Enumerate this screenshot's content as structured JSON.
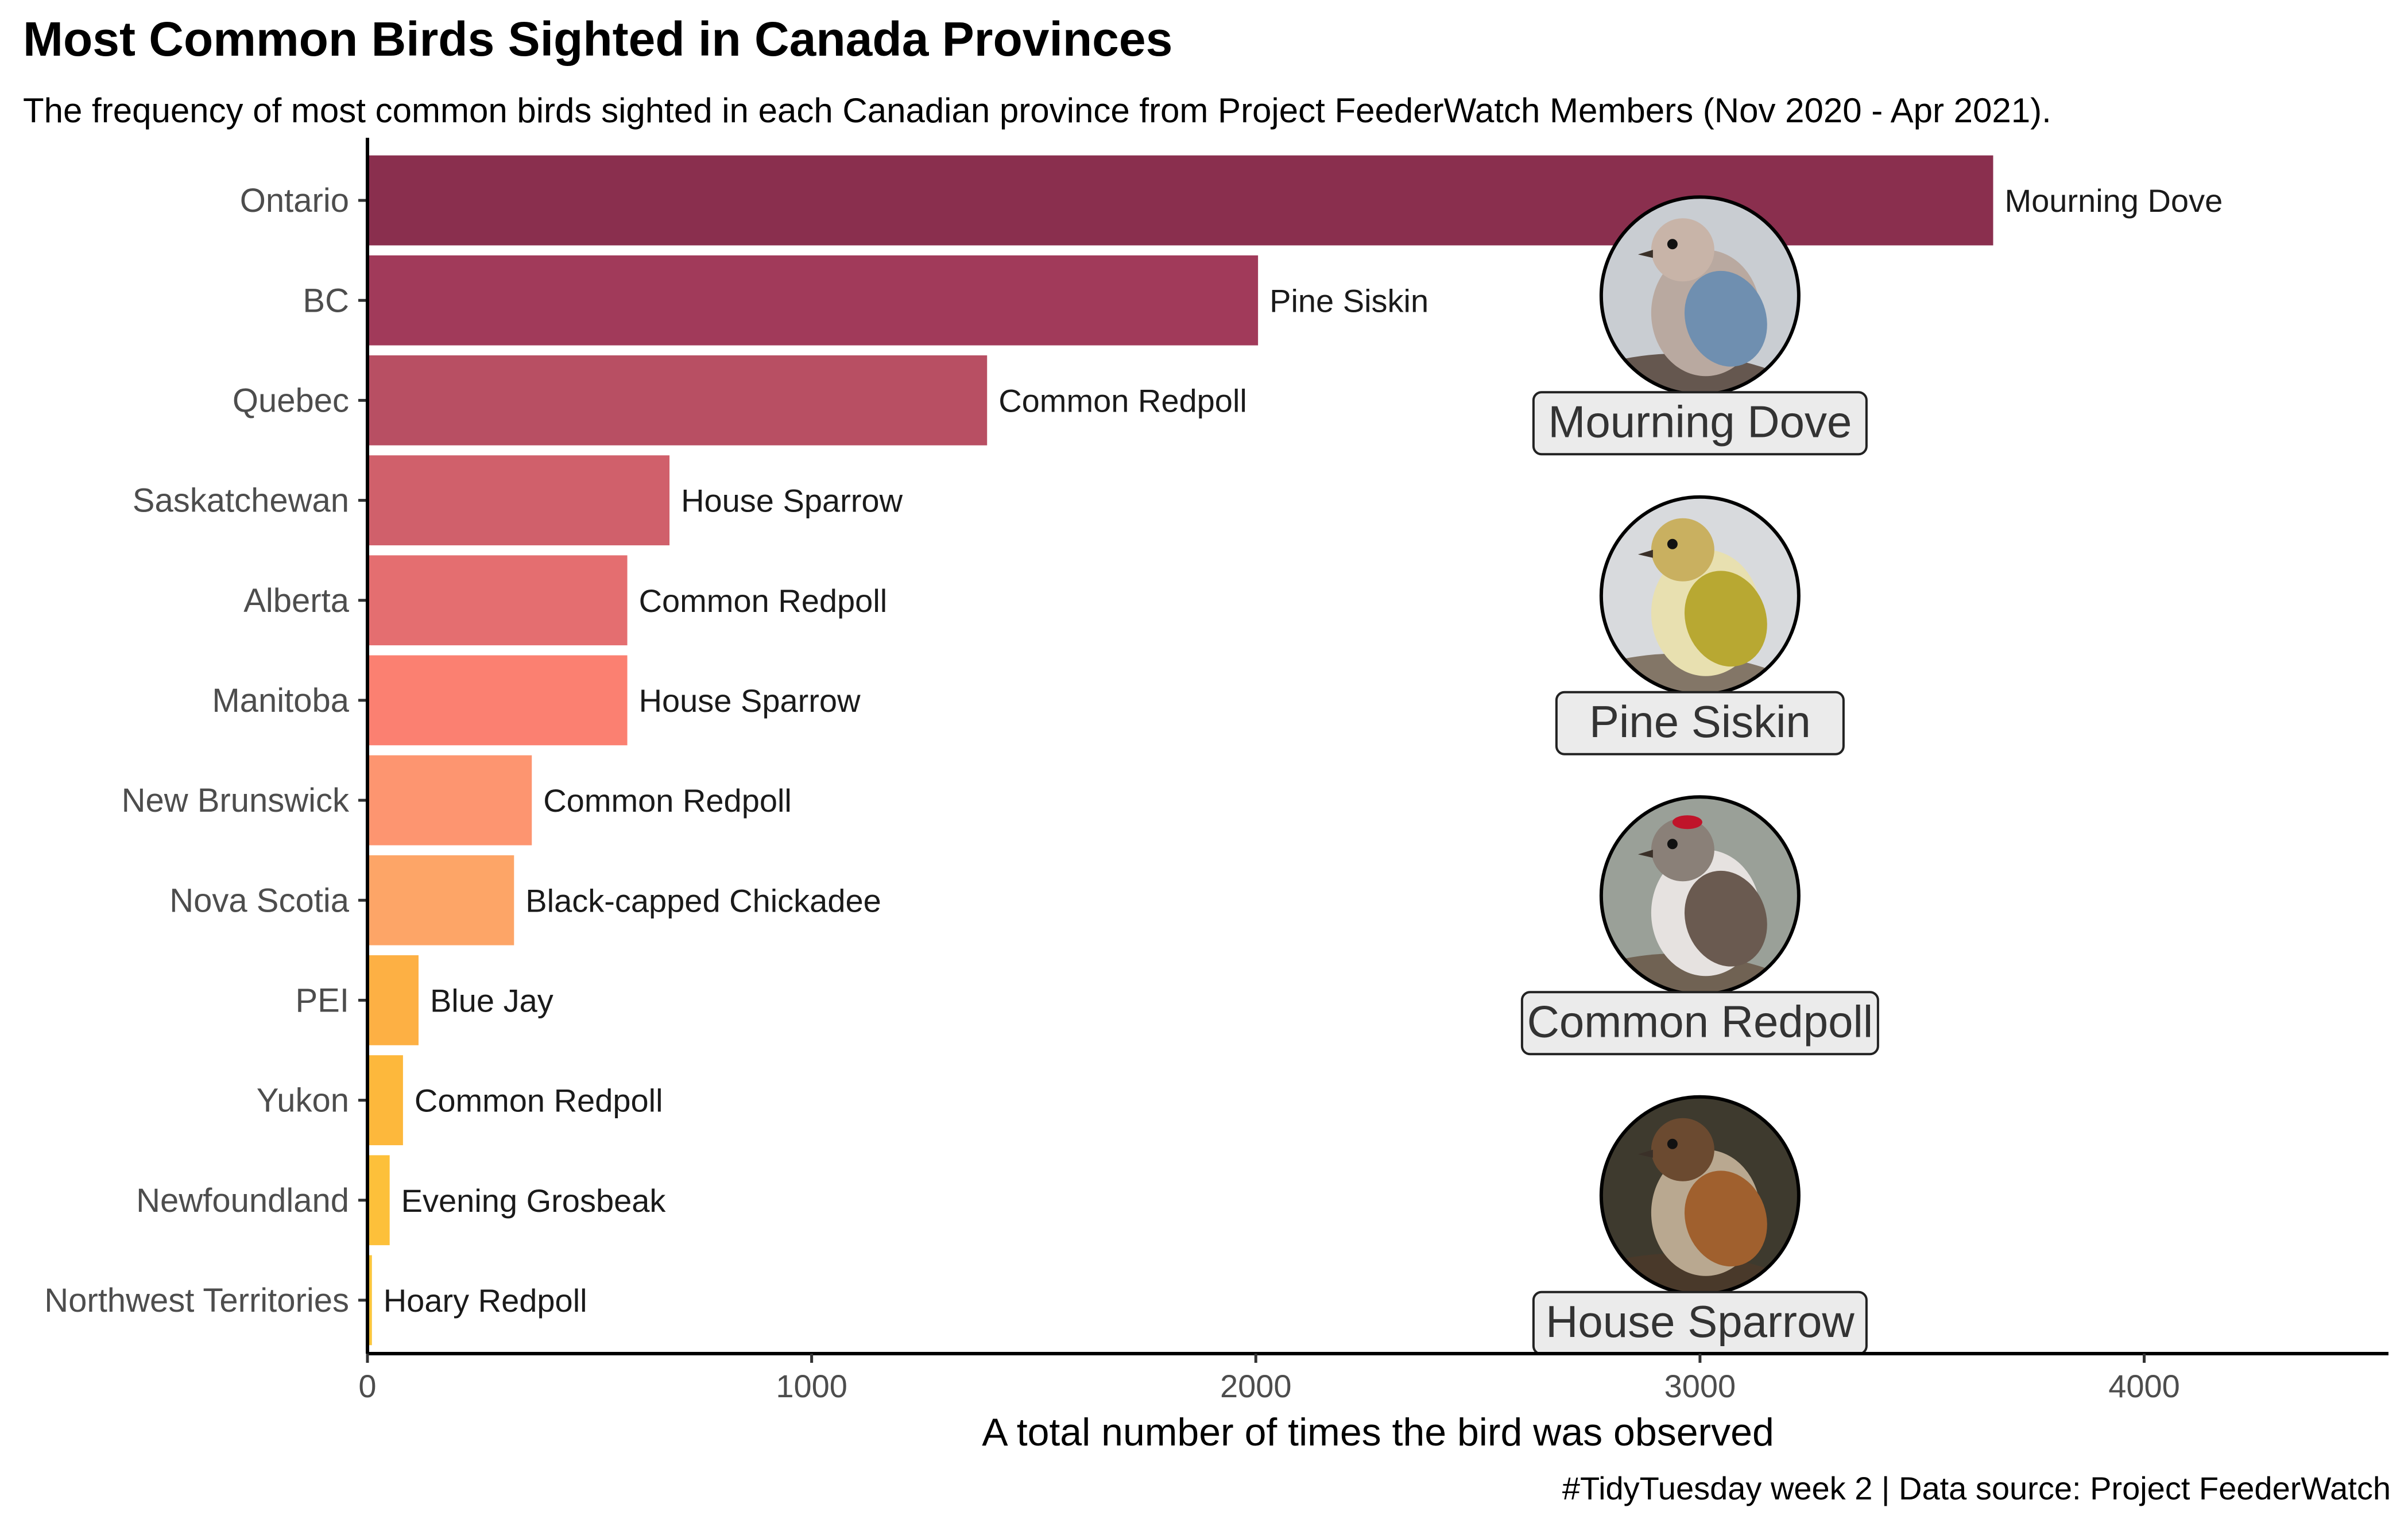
{
  "title": "Most Common Birds Sighted in Canada Provinces",
  "subtitle": "The frequency of most common birds sighted in each Canadian province from Project FeederWatch Members (Nov 2020 - Apr 2021).",
  "caption": "#TidyTuesday week 2 | Data source: Project FeederWatch",
  "chart_data": {
    "type": "bar",
    "orientation": "horizontal",
    "categories": [
      "Ontario",
      "BC",
      "Quebec",
      "Saskatchewan",
      "Alberta",
      "Manitoba",
      "New Brunswick",
      "Nova Scotia",
      "PEI",
      "Yukon",
      "Newfoundland",
      "Northwest Territories"
    ],
    "values": [
      3660,
      2005,
      1395,
      680,
      585,
      585,
      370,
      330,
      115,
      80,
      50,
      10
    ],
    "bar_labels": [
      "Mourning Dove",
      "Pine Siskin",
      "Common Redpoll",
      "House Sparrow",
      "Common Redpoll",
      "House Sparrow",
      "Common Redpoll",
      "Black-capped Chickadee",
      "Blue Jay",
      "Common Redpoll",
      "Evening Grosbeak",
      "Hoary Redpoll"
    ],
    "colors": [
      "#8a2f4e",
      "#a13a5a",
      "#b84f63",
      "#d0606b",
      "#e46e70",
      "#fb8071",
      "#fd9570",
      "#fda567",
      "#fdb044",
      "#fdb83c",
      "#fdc03a",
      "#f9c43a"
    ],
    "xlabel": "A total number of times the bird was observed",
    "ylabel": "",
    "xlim": [
      0,
      4550
    ],
    "xticks": [
      0,
      1000,
      2000,
      3000,
      4000
    ],
    "grid": false,
    "legend": "none",
    "bird_images": [
      {
        "label": "Mourning Dove",
        "icon": "mourning-dove-icon",
        "x": 3000,
        "row": 1
      },
      {
        "label": "Pine Siskin",
        "icon": "pine-siskin-icon",
        "x": 3000,
        "row": 4
      },
      {
        "label": "Common Redpoll",
        "icon": "common-redpoll-icon",
        "x": 3000,
        "row": 7
      },
      {
        "label": "House Sparrow",
        "icon": "house-sparrow-icon",
        "x": 3000,
        "row": 10
      }
    ]
  }
}
